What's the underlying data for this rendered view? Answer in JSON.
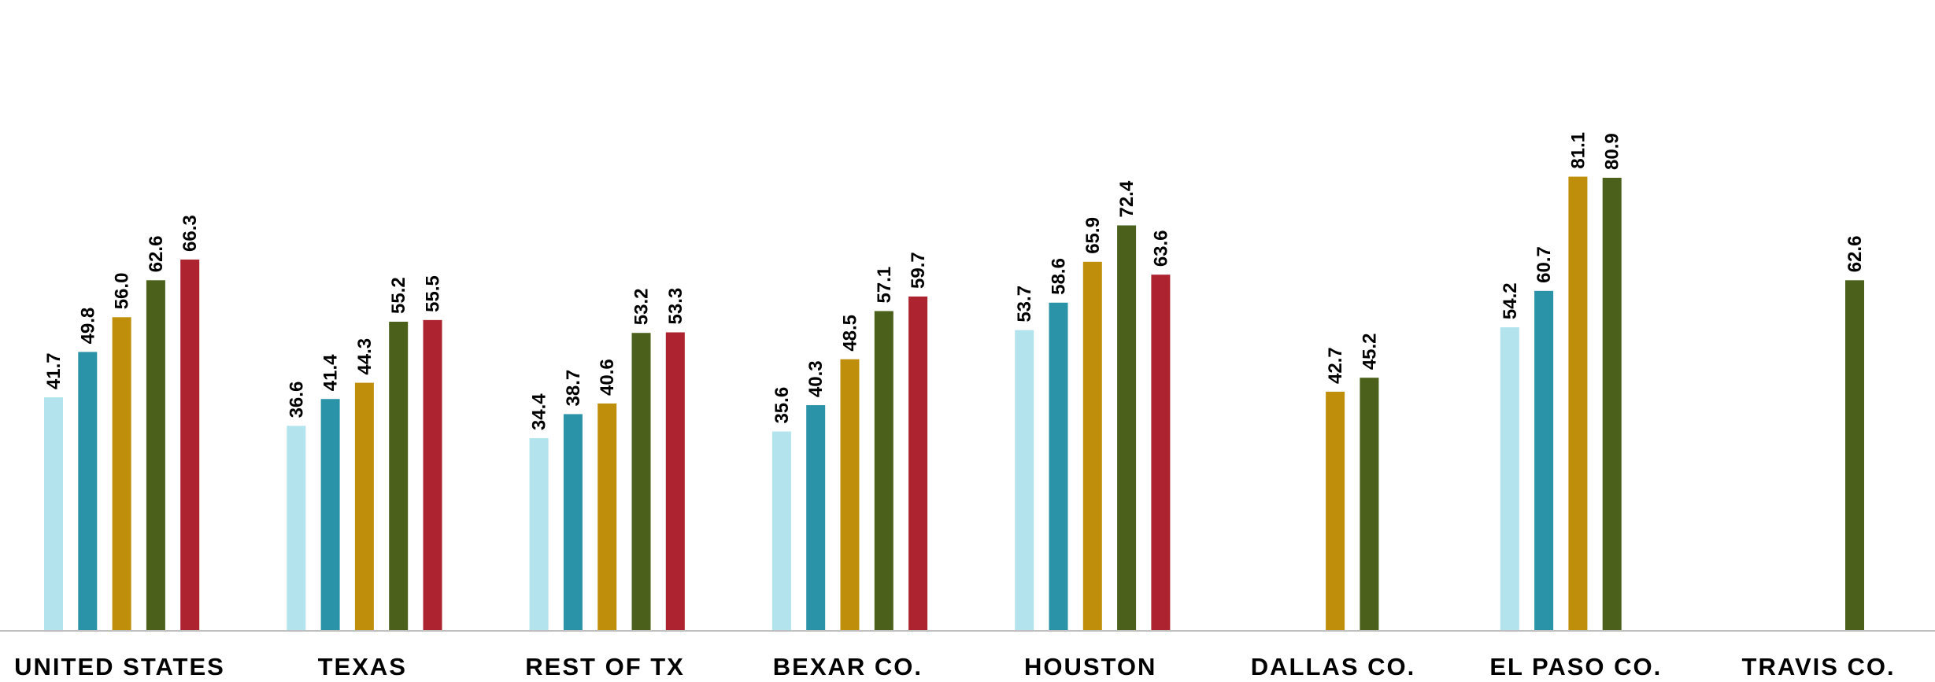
{
  "chart_data": {
    "type": "bar",
    "categories": [
      "UNITED STATES",
      "TEXAS",
      "REST OF TX",
      "BEXAR CO.",
      "HOUSTON",
      "DALLAS CO.",
      "EL PASO CO.",
      "TRAVIS CO."
    ],
    "series": [
      {
        "color": "#B3E3EC",
        "values": [
          41.7,
          36.6,
          34.4,
          35.6,
          53.7,
          null,
          54.2,
          null
        ]
      },
      {
        "color": "#2A93A7",
        "values": [
          49.8,
          41.4,
          38.7,
          40.3,
          58.6,
          null,
          60.7,
          null
        ]
      },
      {
        "color": "#BF8F0B",
        "values": [
          56.0,
          44.3,
          40.6,
          48.5,
          65.9,
          42.7,
          81.1,
          null
        ]
      },
      {
        "color": "#4B611B",
        "values": [
          62.6,
          55.2,
          53.2,
          57.1,
          72.4,
          45.2,
          80.9,
          62.6
        ]
      },
      {
        "color": "#AD2330",
        "values": [
          66.3,
          55.5,
          53.3,
          59.7,
          63.6,
          null,
          null,
          null
        ]
      }
    ],
    "title": "",
    "xlabel": "",
    "ylabel": "",
    "ylim": [
      0,
      90
    ],
    "grid": false,
    "legend": "none",
    "axis_line_color": "#BFBFBF"
  }
}
